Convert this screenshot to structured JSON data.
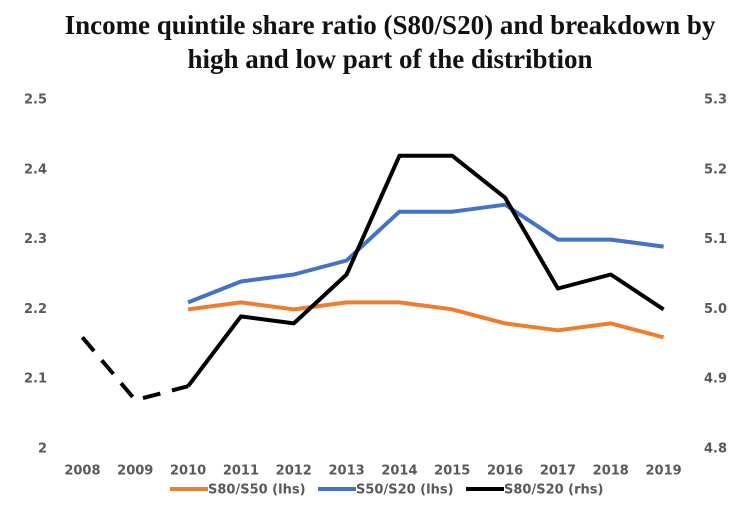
{
  "chart_data": {
    "type": "line",
    "title": "Income quintile share ratio (S80/S20) and breakdown by high and low part of the distribtion",
    "categories": [
      "2008",
      "2009",
      "2010",
      "2011",
      "2012",
      "2013",
      "2014",
      "2015",
      "2016",
      "2017",
      "2018",
      "2019"
    ],
    "series": [
      {
        "name": "S80/S50 (lhs)",
        "color": "#ed7d31",
        "axis": "y",
        "values": [
          null,
          null,
          2.2,
          2.21,
          2.2,
          2.21,
          2.21,
          2.2,
          2.18,
          2.17,
          2.18,
          2.16
        ]
      },
      {
        "name": "S50/S20 (lhs)",
        "color": "#4472c4",
        "axis": "y",
        "values": [
          null,
          null,
          2.21,
          2.24,
          2.25,
          2.27,
          2.34,
          2.34,
          2.35,
          2.3,
          2.3,
          2.29
        ]
      },
      {
        "name": "S80/S20 (rhs)",
        "color": "#000000",
        "axis": "y2",
        "dashed_until": "2010",
        "values": [
          4.96,
          4.87,
          4.89,
          4.99,
          4.98,
          5.05,
          5.22,
          5.22,
          5.16,
          5.03,
          5.05,
          5.0
        ]
      }
    ],
    "ylim": [
      2,
      2.5
    ],
    "yticks": [
      2,
      2.1,
      2.2,
      2.3,
      2.4,
      2.5
    ],
    "y2lim": [
      4.8,
      5.3
    ],
    "y2ticks": [
      4.8,
      4.9,
      {
        "value": 5,
        "label": "5.0"
      },
      5.1,
      5.2,
      5.3
    ],
    "legend": "bottom",
    "grid": false
  }
}
